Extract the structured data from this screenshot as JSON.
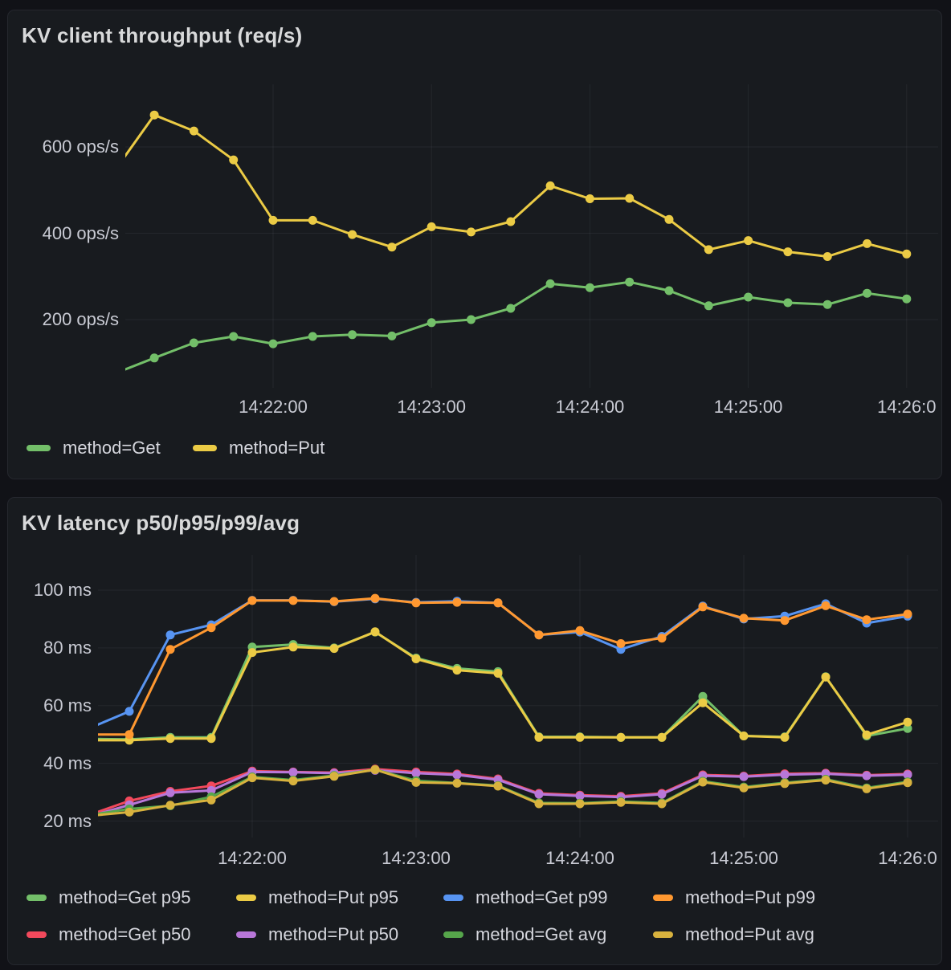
{
  "theme": {
    "page_bg": "#111217",
    "panel_bg": "#181B1F",
    "panel_border": "#25272E",
    "grid_color": "rgba(204,204,220,0.07)",
    "title_color": "#D8D9DA",
    "axis_text_color": "#C9CBD4"
  },
  "chart_data": [
    {
      "type": "line",
      "title": "KV client throughput (req/s)",
      "unit": "ops/s",
      "grid": true,
      "legend_position": "bottom-left",
      "x": [
        "14:21:00",
        "14:21:15",
        "14:21:30",
        "14:21:45",
        "14:22:00",
        "14:22:15",
        "14:22:30",
        "14:22:45",
        "14:23:00",
        "14:23:15",
        "14:23:30",
        "14:23:45",
        "14:24:00",
        "14:24:15",
        "14:24:30",
        "14:24:45",
        "14:25:00",
        "14:25:15",
        "14:25:30",
        "14:25:45",
        "14:26:00"
      ],
      "x_tick_labels": [
        "14:22:00",
        "14:23:00",
        "14:24:00",
        "14:25:00",
        "14:26:0"
      ],
      "y_tick_labels": [
        "600 ops/s",
        "400 ops/s",
        "200 ops/s"
      ],
      "y_tick_values": [
        600,
        400,
        200
      ],
      "ylim": [
        42,
        745
      ],
      "series": [
        {
          "name": "method=Get",
          "color": "#73BF69",
          "values": [
            75,
            111,
            146,
            161,
            144,
            161,
            165,
            162,
            193,
            200,
            226,
            283,
            274,
            287,
            267,
            232,
            252,
            239,
            235,
            261,
            248
          ]
        },
        {
          "name": "method=Put",
          "color": "#EBCB45",
          "values": [
            545,
            674,
            637,
            570,
            430,
            430,
            397,
            368,
            415,
            403,
            427,
            510,
            480,
            481,
            432,
            362,
            383,
            357,
            346,
            376,
            352
          ]
        }
      ]
    },
    {
      "type": "line",
      "title": "KV latency p50/p95/p99/avg",
      "unit": "ms",
      "grid": true,
      "legend_position": "bottom-left",
      "x": [
        "14:21:00",
        "14:21:15",
        "14:21:30",
        "14:21:45",
        "14:22:00",
        "14:22:15",
        "14:22:30",
        "14:22:45",
        "14:23:00",
        "14:23:15",
        "14:23:30",
        "14:23:45",
        "14:24:00",
        "14:24:15",
        "14:24:30",
        "14:24:45",
        "14:25:00",
        "14:25:15",
        "14:25:30",
        "14:25:45",
        "14:26:00"
      ],
      "x_tick_labels": [
        "14:22:00",
        "14:23:00",
        "14:24:00",
        "14:25:00",
        "14:26:0"
      ],
      "y_tick_labels": [
        "100 ms",
        "80 ms",
        "60 ms",
        "40 ms",
        "20 ms"
      ],
      "y_tick_values": [
        100,
        80,
        60,
        40,
        20
      ],
      "ylim": [
        14,
        112
      ],
      "series": [
        {
          "name": "method=Get p95",
          "color": "#73BF69",
          "values": [
            48.5,
            48.3,
            49,
            49,
            80.3,
            81.2,
            80,
            85.5,
            76.5,
            72.9,
            71.8,
            49.2,
            49.2,
            49,
            49,
            63.2,
            49.5,
            49.2,
            70,
            49.5,
            52.1
          ]
        },
        {
          "name": "method=Put p95",
          "color": "#EBCB45",
          "values": [
            48,
            48,
            48.6,
            48.6,
            78.4,
            80.3,
            79.8,
            85.6,
            76.2,
            72.3,
            71.2,
            49,
            49,
            49,
            49,
            61,
            49.5,
            49,
            69.9,
            49.9,
            54.3
          ]
        },
        {
          "name": "method=Get p99",
          "color": "#5794F2",
          "values": [
            52,
            58,
            84.5,
            88,
            96.5,
            96.5,
            96,
            97,
            95.8,
            96.2,
            95.6,
            84.5,
            85.5,
            79.5,
            84,
            94.5,
            90,
            91,
            95.3,
            88.6,
            91
          ]
        },
        {
          "name": "method=Put p99",
          "color": "#FF9830",
          "values": [
            50,
            50,
            79.5,
            87,
            96.4,
            96.4,
            96.1,
            97.2,
            95.6,
            95.8,
            95.6,
            84.5,
            86,
            81.5,
            83.4,
            94.2,
            90.3,
            89.5,
            94.6,
            89.8,
            91.7
          ]
        },
        {
          "name": "method=Get p50",
          "color": "#F2495C",
          "values": [
            22,
            27,
            30.3,
            32.2,
            37.3,
            37,
            36.8,
            38,
            37,
            36.3,
            34.6,
            29.6,
            29,
            28.6,
            29.6,
            36,
            35.6,
            36.4,
            36.6,
            35.9,
            36.3
          ]
        },
        {
          "name": "method=Put p50",
          "color": "#B877D9",
          "values": [
            21.5,
            25.6,
            29.8,
            30.6,
            37,
            36.9,
            36.6,
            37.6,
            36.6,
            36,
            34.3,
            29.3,
            28.7,
            28.3,
            29.3,
            35.7,
            35.4,
            36.1,
            36.4,
            35.7,
            36.1
          ]
        },
        {
          "name": "method=Get avg",
          "color": "#56A64B",
          "values": [
            22,
            24.2,
            25.3,
            28.4,
            35.3,
            34.2,
            35.8,
            37.8,
            34,
            33.2,
            32.3,
            26.3,
            26.2,
            26.8,
            26.3,
            33.8,
            31.8,
            33.3,
            34.5,
            31.5,
            33.6
          ]
        },
        {
          "name": "method=Put avg",
          "color": "#D8B23E",
          "values": [
            21.8,
            23.1,
            25.5,
            27.3,
            35,
            33.9,
            35.5,
            37.8,
            33.4,
            33.1,
            32.1,
            26,
            26,
            26.5,
            26,
            33.5,
            31.5,
            33,
            34.2,
            31.2,
            33.3
          ]
        }
      ]
    }
  ]
}
